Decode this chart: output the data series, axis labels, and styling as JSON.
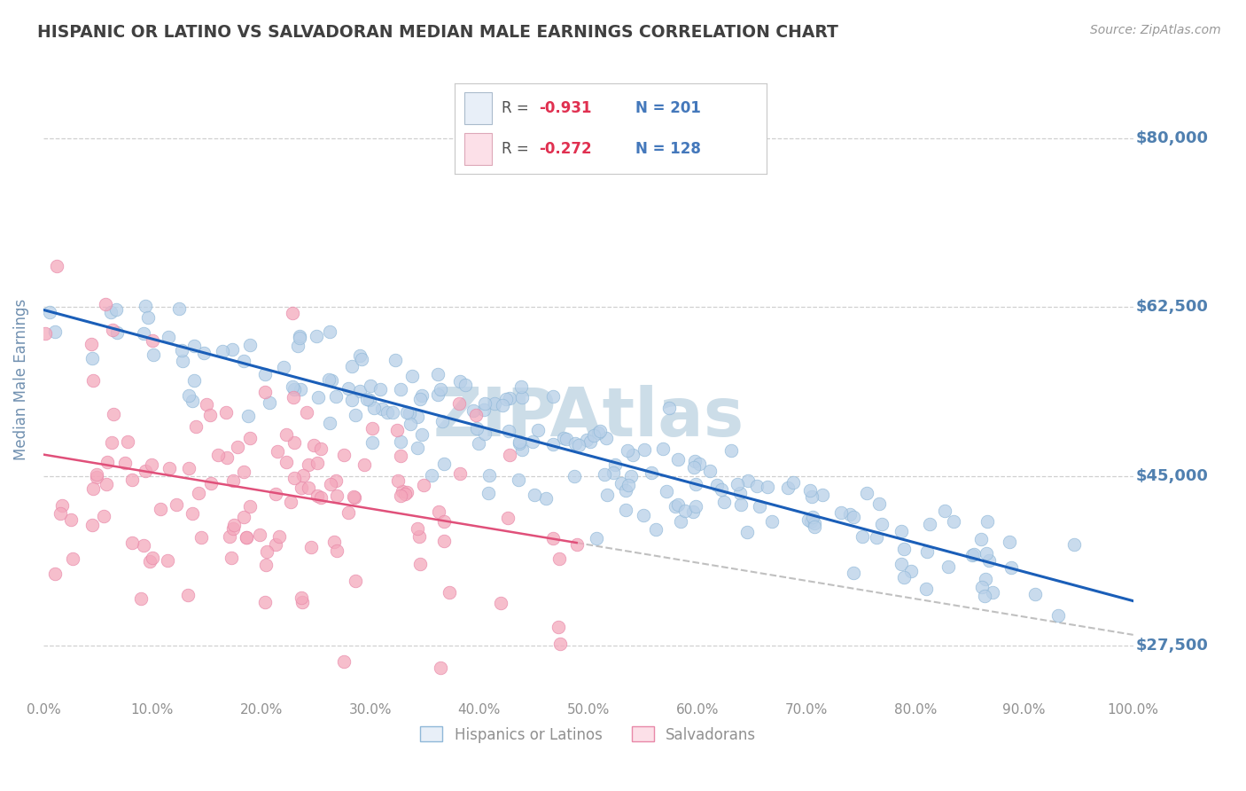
{
  "title": "HISPANIC OR LATINO VS SALVADORAN MEDIAN MALE EARNINGS CORRELATION CHART",
  "source_text": "Source: ZipAtlas.com",
  "ylabel": "Median Male Earnings",
  "xlim": [
    0,
    1
  ],
  "ylim": [
    22000,
    88000
  ],
  "yticks": [
    27500,
    45000,
    62500,
    80000
  ],
  "ytick_labels": [
    "$27,500",
    "$45,000",
    "$62,500",
    "$80,000"
  ],
  "xtick_labels": [
    "0.0%",
    "10.0%",
    "20.0%",
    "30.0%",
    "40.0%",
    "50.0%",
    "60.0%",
    "70.0%",
    "80.0%",
    "90.0%",
    "100.0%"
  ],
  "series1_name": "Hispanics or Latinos",
  "series2_name": "Salvadorans",
  "series1_color": "#b8d0e8",
  "series2_color": "#f4a8bc",
  "series1_edge": "#90b8d8",
  "series2_edge": "#e888a8",
  "trendline1_color": "#1a5eb8",
  "trendline2_color": "#e0507a",
  "gray_dash_color": "#c0c0c0",
  "background_color": "#ffffff",
  "title_color": "#404040",
  "axis_label_color": "#7090b0",
  "ytick_color": "#5080b0",
  "xtick_color": "#909090",
  "grid_color": "#d0d0d0",
  "watermark_text": "ZIPAtlas",
  "watermark_color": "#ccdde8",
  "r1": -0.931,
  "n1": 201,
  "r2": -0.272,
  "n2": 128,
  "legend_box_color": "#e8eff8",
  "legend_box_pink": "#fce0e8"
}
